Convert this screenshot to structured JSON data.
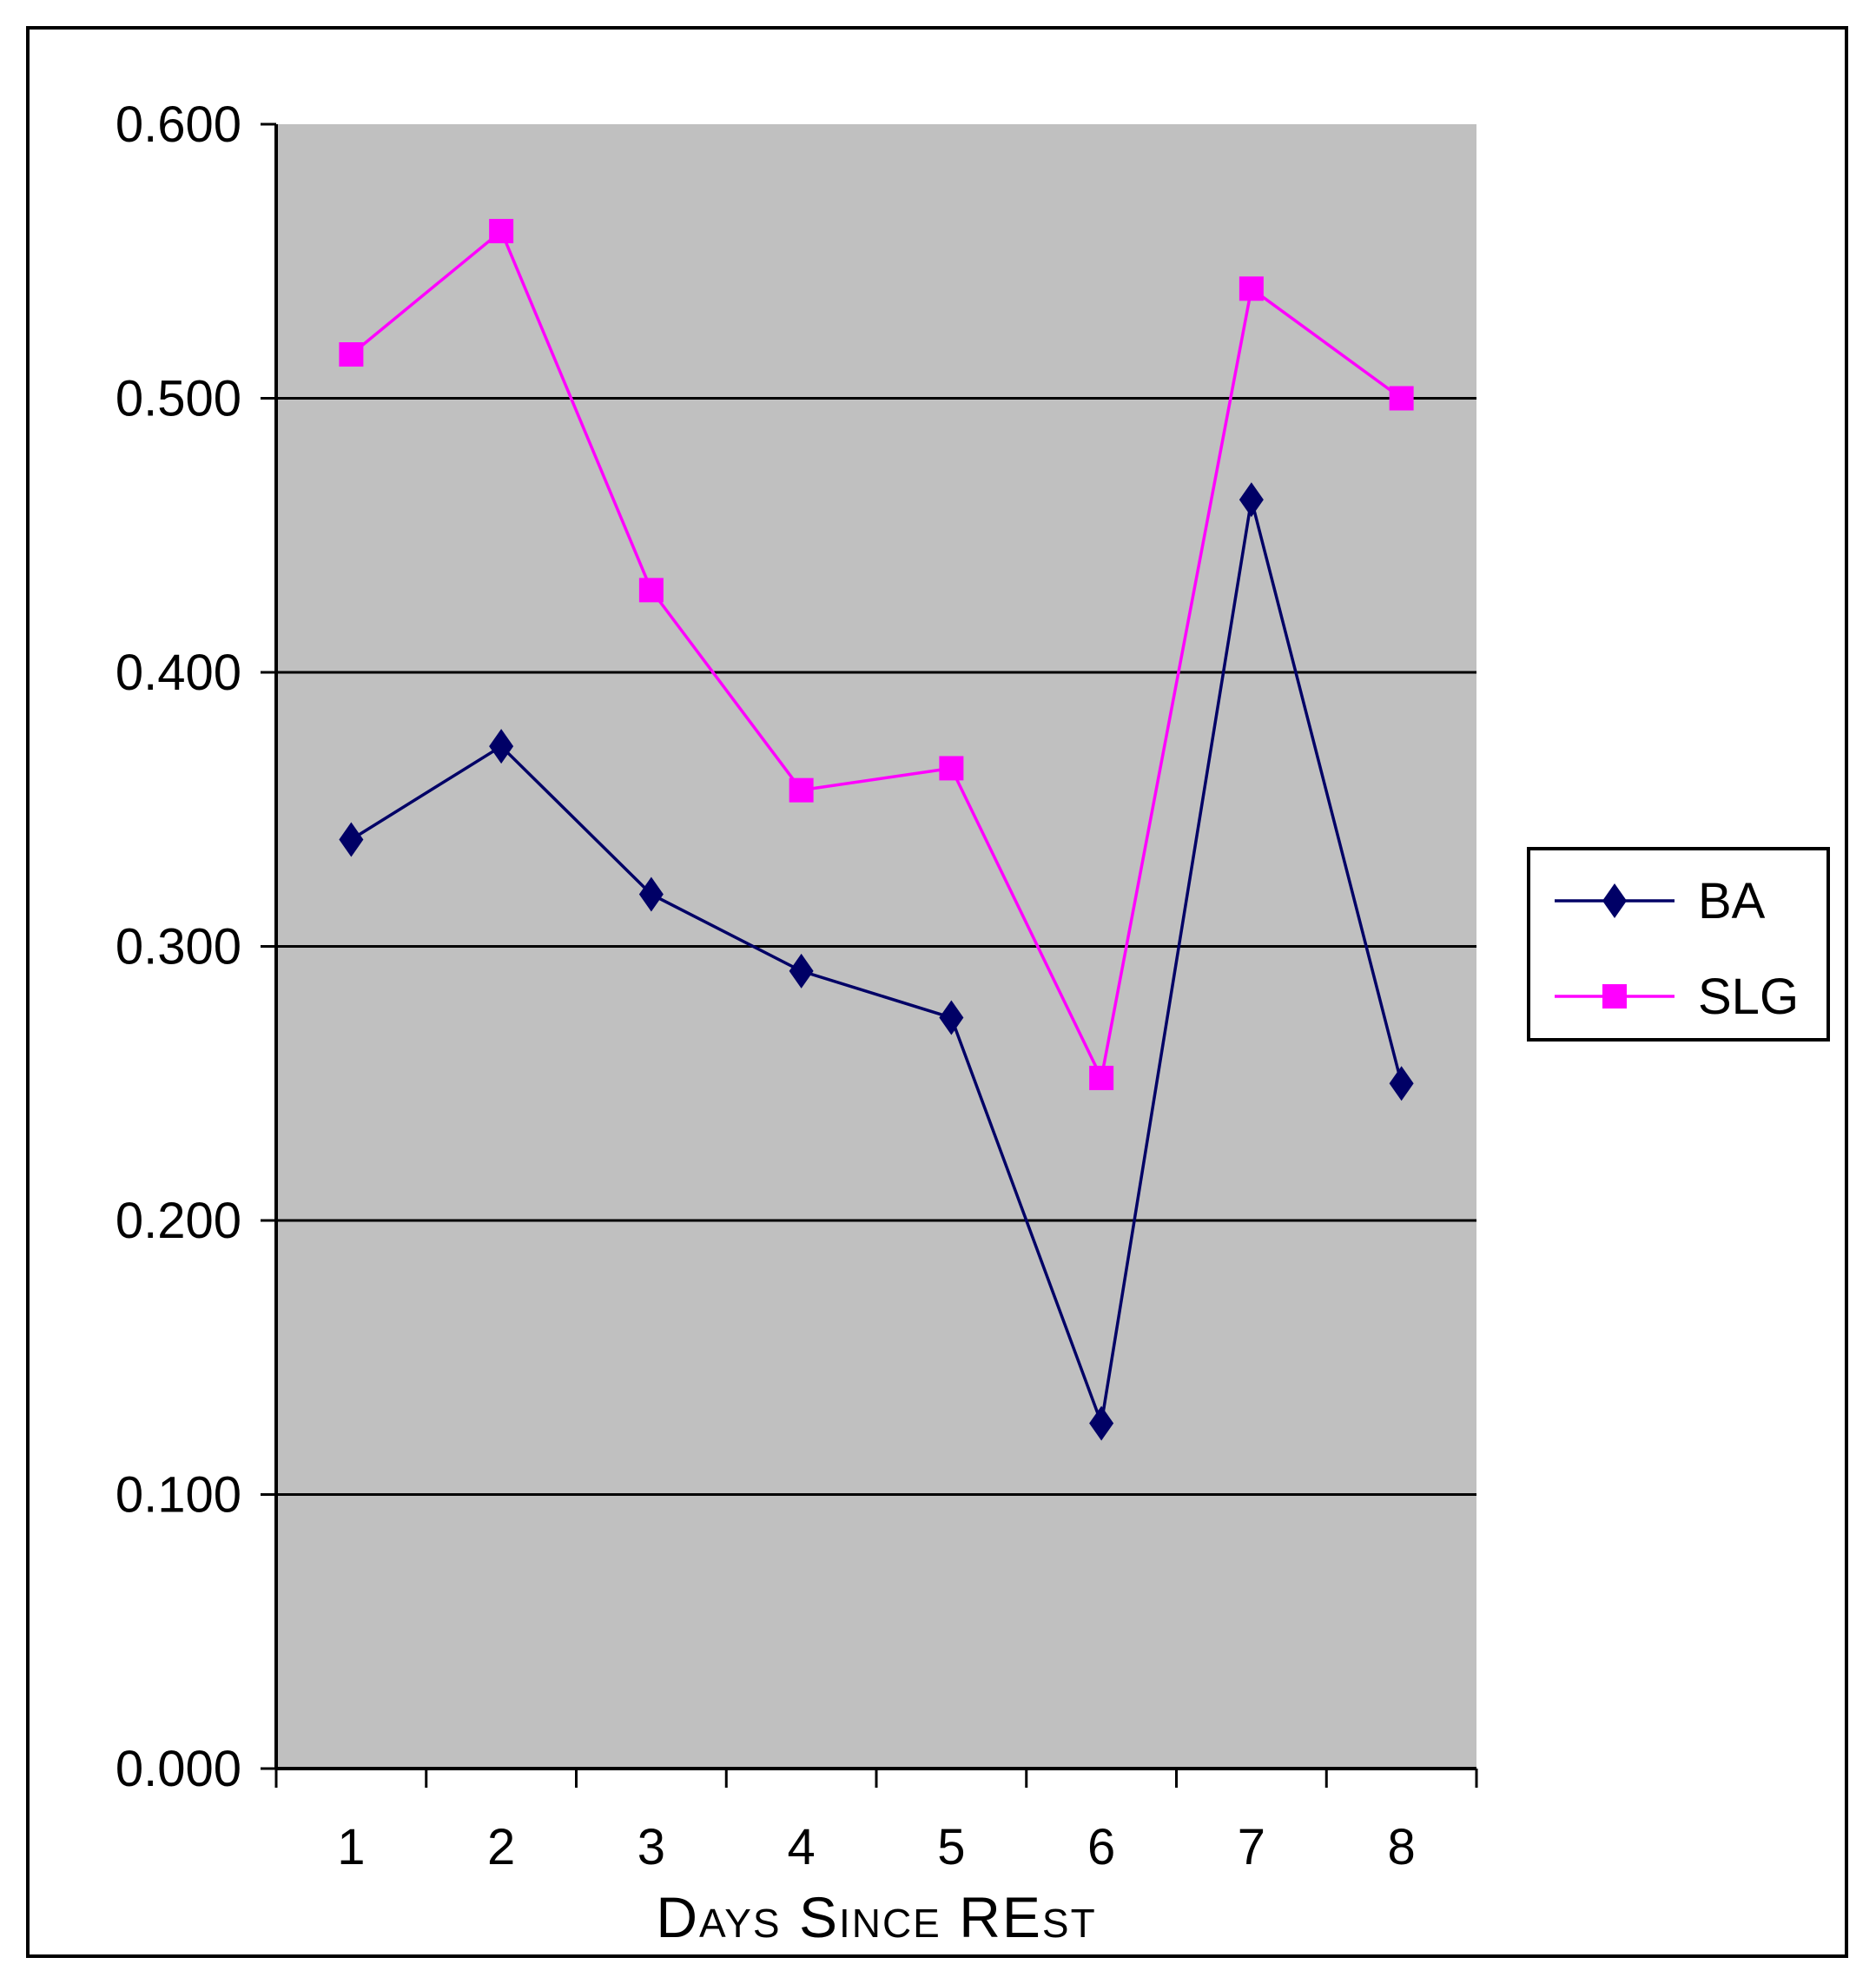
{
  "chart_data": {
    "type": "line",
    "title": "",
    "xlabel": "Days Since REst",
    "ylabel": "",
    "categories": [
      "1",
      "2",
      "3",
      "4",
      "5",
      "6",
      "7",
      "8"
    ],
    "ylim": [
      0,
      0.6
    ],
    "yticks": [
      "0.000",
      "0.100",
      "0.200",
      "0.300",
      "0.400",
      "0.500",
      "0.600"
    ],
    "grid": true,
    "legend_position": "right",
    "plot_background": "#c0c0c0",
    "series": [
      {
        "name": "BA",
        "color": "#000066",
        "marker": "diamond",
        "values": [
          0.339,
          0.373,
          0.319,
          0.291,
          0.274,
          0.126,
          0.463,
          0.25
        ]
      },
      {
        "name": "SLG",
        "color": "#ff00ff",
        "marker": "square",
        "values": [
          0.516,
          0.561,
          0.43,
          0.357,
          0.365,
          0.252,
          0.54,
          0.5
        ]
      }
    ]
  }
}
